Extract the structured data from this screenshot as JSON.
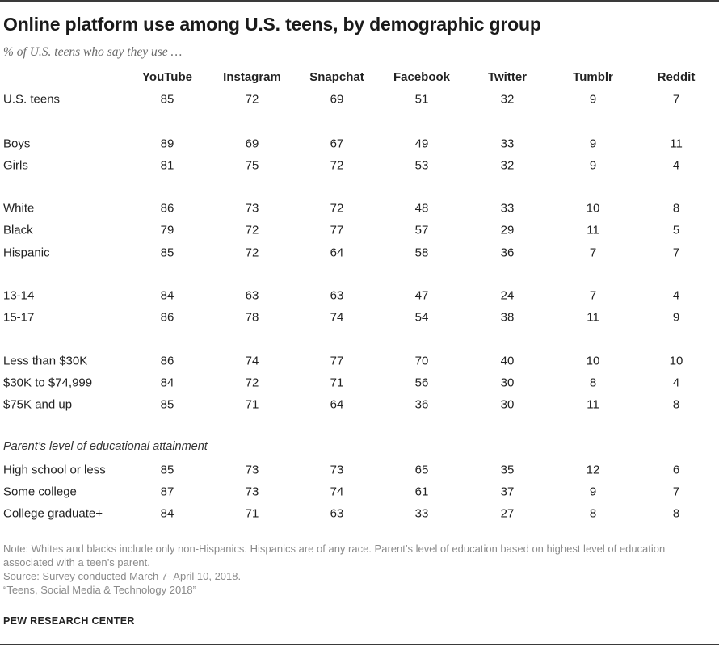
{
  "title": "Online platform use among U.S. teens, by demographic group",
  "subtitle": "% of U.S. teens who say they use …",
  "section_label": "Parent’s level of educational attainment",
  "notes": [
    "Note: Whites and blacks include only non-Hispanics. Hispanics are of any race. Parent’s level of education based on highest level of education associated with a teen’s parent.",
    "Source: Survey conducted March 7- April 10, 2018.",
    "“Teens, Social Media & Technology 2018”"
  ],
  "footer": "PEW RESEARCH CENTER",
  "chart_data": {
    "type": "table",
    "title": "Online platform use among U.S. teens, by demographic group",
    "columns": [
      "YouTube",
      "Instagram",
      "Snapchat",
      "Facebook",
      "Twitter",
      "Tumblr",
      "Reddit"
    ],
    "rows": [
      {
        "label": "U.S. teens",
        "values": [
          85,
          72,
          69,
          51,
          32,
          9,
          7
        ]
      },
      {
        "label": "Boys",
        "values": [
          89,
          69,
          67,
          49,
          33,
          9,
          11
        ]
      },
      {
        "label": "Girls",
        "values": [
          81,
          75,
          72,
          53,
          32,
          9,
          4
        ]
      },
      {
        "label": "White",
        "values": [
          86,
          73,
          72,
          48,
          33,
          10,
          8
        ]
      },
      {
        "label": "Black",
        "values": [
          79,
          72,
          77,
          57,
          29,
          11,
          5
        ]
      },
      {
        "label": "Hispanic",
        "values": [
          85,
          72,
          64,
          58,
          36,
          7,
          7
        ]
      },
      {
        "label": "13-14",
        "values": [
          84,
          63,
          63,
          47,
          24,
          7,
          4
        ]
      },
      {
        "label": "15-17",
        "values": [
          86,
          78,
          74,
          54,
          38,
          11,
          9
        ]
      },
      {
        "label": "Less than $30K",
        "values": [
          86,
          74,
          77,
          70,
          40,
          10,
          10
        ]
      },
      {
        "label": "$30K to $74,999",
        "values": [
          84,
          72,
          71,
          56,
          30,
          8,
          4
        ]
      },
      {
        "label": "$75K and up",
        "values": [
          85,
          71,
          64,
          36,
          30,
          11,
          8
        ]
      },
      {
        "label": "High school or less",
        "values": [
          85,
          73,
          73,
          65,
          35,
          12,
          6
        ]
      },
      {
        "label": "Some college",
        "values": [
          87,
          73,
          74,
          61,
          37,
          9,
          7
        ]
      },
      {
        "label": "College graduate+",
        "values": [
          84,
          71,
          63,
          33,
          27,
          8,
          8
        ]
      }
    ]
  }
}
